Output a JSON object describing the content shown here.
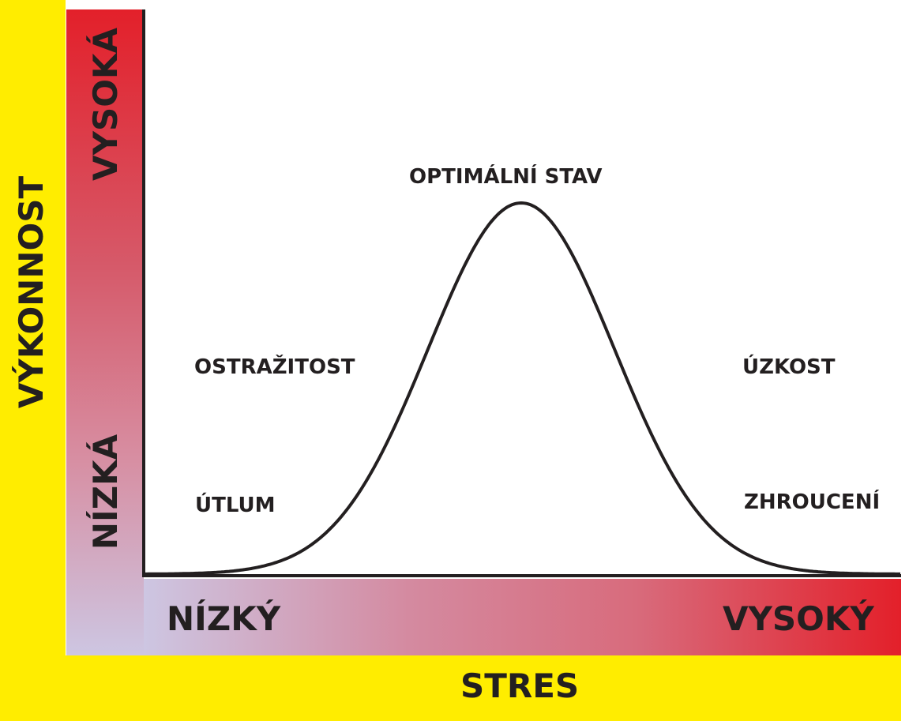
{
  "colors": {
    "band": "#ffed00",
    "high": "#e3202a",
    "low": "#cdc6e2",
    "ink": "#231f20"
  },
  "y_axis": {
    "title": "VÝKONNOST",
    "high_label": "VYSOKÁ",
    "low_label": "NÍZKÁ"
  },
  "x_axis": {
    "title": "STRES",
    "low_label": "NÍZKÝ",
    "high_label": "VYSOKÝ"
  },
  "curve_labels": {
    "peak": "OPTIMÁLNÍ STAV",
    "left_upper": "OSTRAŽITOST",
    "left_lower": "ÚTLUM",
    "right_upper": "ÚZKOST",
    "right_lower": "ZHROUCENÍ"
  }
}
